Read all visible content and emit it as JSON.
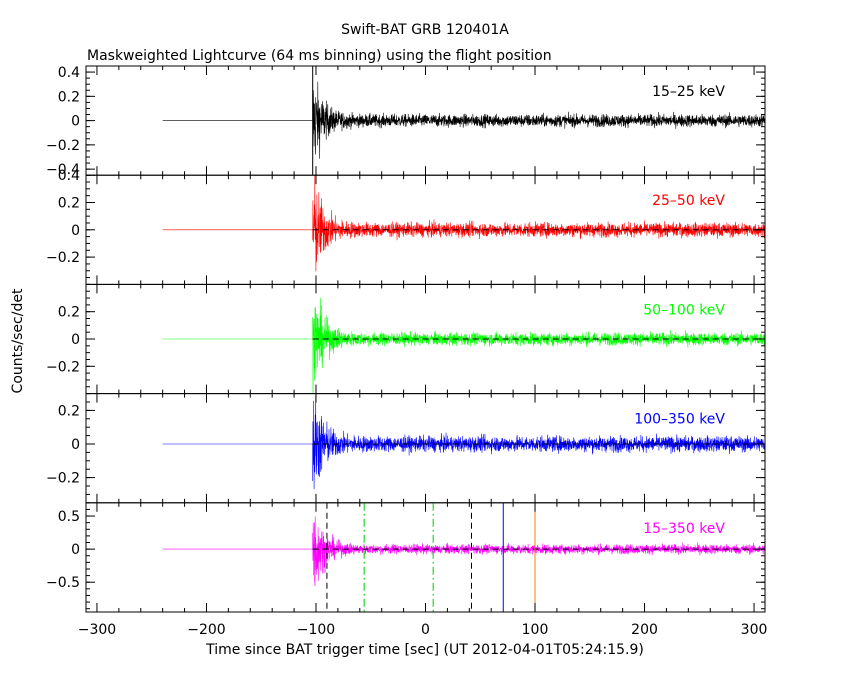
{
  "chart_data": {
    "type": "line",
    "title": "Swift-BAT GRB 120401A",
    "subtitle": "Maskweighted Lightcurve (64 ms binning) using the flight position",
    "ylabel": "Counts/sec/det",
    "xlabel": "Time since BAT trigger time [sec] (UT 2012-04-01T05:24:15.9)",
    "xlim": [
      -310,
      310
    ],
    "x_ticks": [
      -300,
      -200,
      -100,
      0,
      100,
      200,
      300
    ],
    "x_tick_labels": [
      "−300",
      "−200",
      "−100",
      "0",
      "100",
      "200",
      "300"
    ],
    "panels": [
      {
        "label": "15–25 keV",
        "color": "#000000",
        "ylim": [
          -0.45,
          0.45
        ],
        "y_ticks": [
          0.4,
          0.2,
          0,
          -0.2,
          -0.4
        ],
        "y_tick_labels": [
          "0.4",
          "0.2",
          "0",
          "−0.2",
          "−0.4"
        ],
        "flat_start": -240,
        "onset": -103,
        "spike_amplitude": 0.38,
        "noise": 0.05,
        "dashed_zero": false
      },
      {
        "label": "25–50 keV",
        "color": "#ff0000",
        "ylim": [
          -0.4,
          0.4
        ],
        "y_ticks": [
          0.4,
          0.2,
          0,
          -0.2
        ],
        "y_tick_labels": [
          "0.4",
          "0.2",
          "0",
          "−0.2"
        ],
        "flat_start": -240,
        "onset": -103,
        "spike_amplitude": 0.4,
        "noise": 0.05,
        "dashed_zero": true
      },
      {
        "label": "50–100 keV",
        "color": "#00ff00",
        "ylim": [
          -0.4,
          0.4
        ],
        "y_ticks": [
          0.2,
          0,
          -0.2
        ],
        "y_tick_labels": [
          "0.2",
          "0",
          "−0.2"
        ],
        "flat_start": -240,
        "onset": -103,
        "spike_amplitude": 0.38,
        "noise": 0.045,
        "dashed_zero": true
      },
      {
        "label": "100–350 keV",
        "color": "#0000ff",
        "ylim": [
          -0.35,
          0.3
        ],
        "y_ticks": [
          0.2,
          0,
          -0.2
        ],
        "y_tick_labels": [
          "0.2",
          "0",
          "−0.2"
        ],
        "flat_start": -240,
        "onset": -103,
        "spike_amplitude": 0.32,
        "noise": 0.045,
        "dashed_zero": true
      },
      {
        "label": "15–350 keV",
        "color": "#ff00ff",
        "ylim": [
          -0.95,
          0.7
        ],
        "y_ticks": [
          0.5,
          0,
          -0.5
        ],
        "y_tick_labels": [
          "0.5",
          "0",
          "−0.5"
        ],
        "flat_start": -240,
        "onset": -103,
        "spike_amplitude": 0.7,
        "noise": 0.07,
        "dashed_zero": true
      }
    ],
    "vertical_markers": [
      {
        "x": -103,
        "color": "#000000",
        "style": "solid",
        "panels": "first"
      },
      {
        "x": -90,
        "color": "#000000",
        "style": "dashed",
        "panels": "last"
      },
      {
        "x": -56,
        "color": "#00cc00",
        "style": "dashdot",
        "panels": "last"
      },
      {
        "x": 7,
        "color": "#00cc00",
        "style": "dashdot",
        "panels": "last"
      },
      {
        "x": 42,
        "color": "#000000",
        "style": "dashed",
        "panels": "last"
      },
      {
        "x": 71,
        "color": "#0000ff",
        "style": "solid",
        "panels": "last"
      },
      {
        "x": 100,
        "color": "#ff8000",
        "style": "solid",
        "panels": "last"
      }
    ],
    "grid": false
  }
}
